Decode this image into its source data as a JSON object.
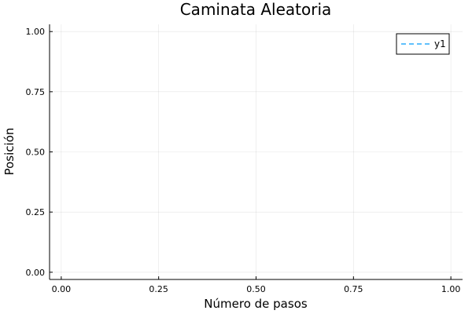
{
  "chart_data": {
    "type": "line",
    "title": "Caminata Aleatoria",
    "xlabel": "Número de pasos",
    "ylabel": "Posición",
    "xlim": [
      -0.03,
      1.03
    ],
    "ylim": [
      -0.03,
      1.03
    ],
    "xticks": [
      0.0,
      0.25,
      0.5,
      0.75,
      1.0
    ],
    "xtick_labels": [
      "0.00",
      "0.25",
      "0.50",
      "0.75",
      "1.00"
    ],
    "yticks": [
      0.0,
      0.25,
      0.5,
      0.75,
      1.0
    ],
    "ytick_labels": [
      "0.00",
      "0.25",
      "0.50",
      "0.75",
      "1.00"
    ],
    "grid": true,
    "legend": "top-right",
    "series": [
      {
        "name": "y1",
        "color": "#009af9",
        "line_style": "dashed",
        "x": [],
        "y": []
      }
    ]
  }
}
